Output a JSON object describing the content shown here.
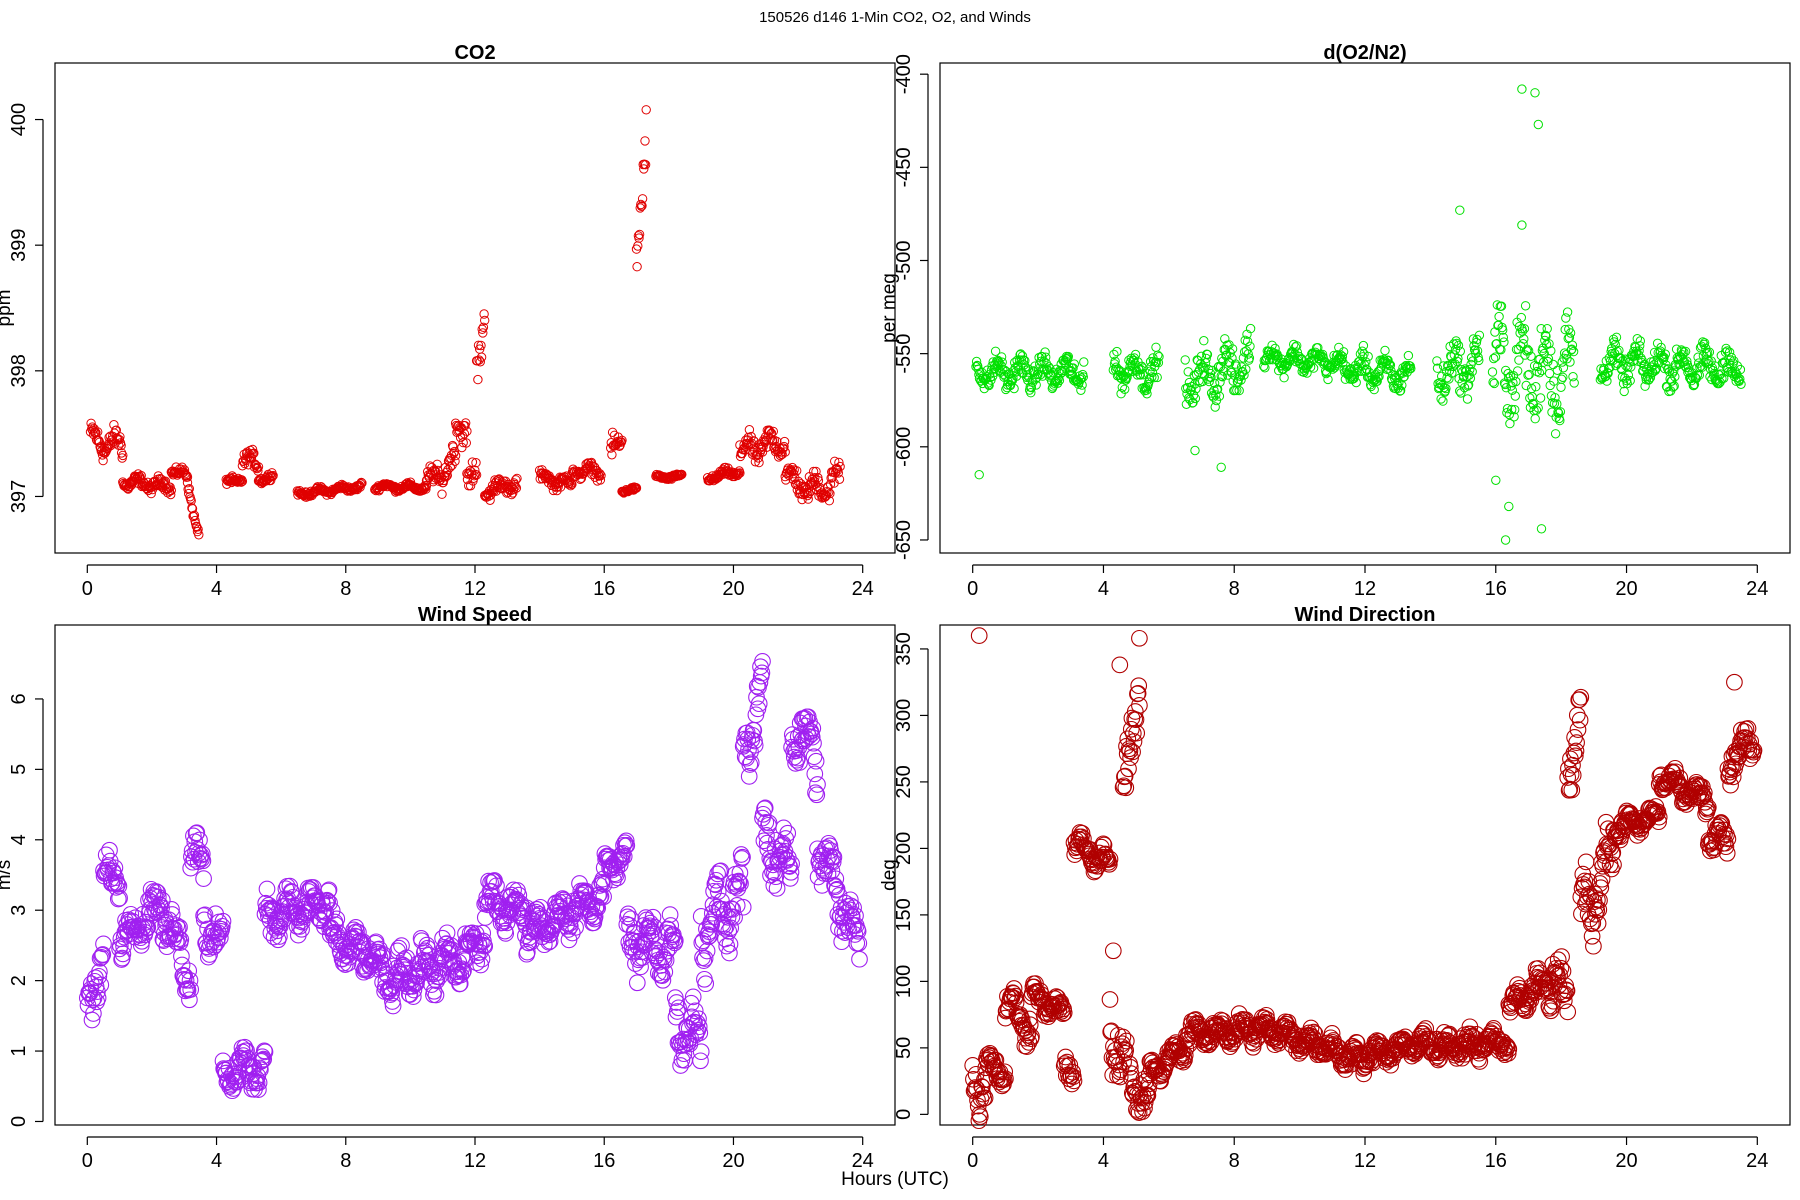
{
  "figure_title": "150526   d146   1-Min CO2, O2, and Winds",
  "xlabel": "Hours (UTC)",
  "chart_data": [
    {
      "type": "scatter",
      "title": "CO2",
      "ylabel": "ppm",
      "xlabel": "",
      "color": "#e00000",
      "xlim": [
        -1,
        25
      ],
      "ylim": [
        396.55,
        400.45
      ],
      "xticks": [
        0,
        4,
        8,
        12,
        16,
        20,
        24
      ],
      "yticks": [
        397,
        398,
        399,
        400
      ],
      "segments": [
        {
          "x": [
            0.1,
            1.1
          ],
          "y": [
            397.45,
            397.4
          ],
          "jitter": 0.12
        },
        {
          "x": [
            1.1,
            2.6
          ],
          "y": [
            397.12,
            397.08
          ],
          "jitter": 0.06
        },
        {
          "x": [
            2.6,
            3.1
          ],
          "y": [
            397.22,
            397.15
          ],
          "jitter": 0.05
        },
        {
          "x": [
            3.1,
            3.45
          ],
          "y": [
            397.1,
            396.7
          ],
          "jitter": 0.05
        },
        {
          "x": [
            4.3,
            4.8
          ],
          "y": [
            397.1,
            397.15
          ],
          "jitter": 0.04
        },
        {
          "x": [
            4.8,
            5.3
          ],
          "y": [
            397.3,
            397.25
          ],
          "jitter": 0.08
        },
        {
          "x": [
            5.3,
            5.75
          ],
          "y": [
            397.15,
            397.15
          ],
          "jitter": 0.04
        },
        {
          "x": [
            6.5,
            8.5
          ],
          "y": [
            397.02,
            397.08
          ],
          "jitter": 0.03
        },
        {
          "x": [
            8.9,
            10.5
          ],
          "y": [
            397.08,
            397.07
          ],
          "jitter": 0.03
        },
        {
          "x": [
            10.5,
            11.4
          ],
          "y": [
            397.08,
            397.3
          ],
          "jitter": 0.12
        },
        {
          "x": [
            11.4,
            11.75
          ],
          "y": [
            397.5,
            397.6
          ],
          "jitter": 0.15
        },
        {
          "x": [
            11.75,
            12.05
          ],
          "y": [
            397.2,
            397.1
          ],
          "jitter": 0.15
        },
        {
          "x": [
            12.05,
            12.3
          ],
          "y": [
            397.9,
            398.4
          ],
          "jitter": 0.3
        },
        {
          "x": [
            12.3,
            13.3
          ],
          "y": [
            397.05,
            397.1
          ],
          "jitter": 0.08
        },
        {
          "x": [
            14.0,
            15.0
          ],
          "y": [
            397.15,
            397.1
          ],
          "jitter": 0.06
        },
        {
          "x": [
            15.0,
            15.9
          ],
          "y": [
            397.2,
            397.2
          ],
          "jitter": 0.06
        },
        {
          "x": [
            16.2,
            16.55
          ],
          "y": [
            397.3,
            397.5
          ],
          "jitter": 0.12
        },
        {
          "x": [
            16.55,
            17.0
          ],
          "y": [
            397.05,
            397.05
          ],
          "jitter": 0.02
        },
        {
          "x": [
            17.0,
            17.3
          ],
          "y": [
            398.7,
            400.1
          ],
          "jitter": 0.3
        },
        {
          "x": [
            17.6,
            18.4
          ],
          "y": [
            397.15,
            397.16
          ],
          "jitter": 0.02
        },
        {
          "x": [
            19.2,
            20.2
          ],
          "y": [
            397.15,
            397.2
          ],
          "jitter": 0.04
        },
        {
          "x": [
            20.2,
            21.6
          ],
          "y": [
            397.35,
            397.45
          ],
          "jitter": 0.12
        },
        {
          "x": [
            21.6,
            22.5
          ],
          "y": [
            397.15,
            397.05
          ],
          "jitter": 0.12
        },
        {
          "x": [
            22.5,
            23.3
          ],
          "y": [
            397.05,
            397.15
          ],
          "jitter": 0.14
        }
      ]
    },
    {
      "type": "scatter",
      "title": "d(O2/N2)",
      "ylabel": "per meg",
      "xlabel": "",
      "color": "#00e000",
      "xlim": [
        -1,
        25
      ],
      "ylim": [
        -657,
        -394
      ],
      "xticks": [
        0,
        4,
        8,
        12,
        16,
        20,
        24
      ],
      "yticks": [
        -650,
        -600,
        -550,
        -500,
        -450,
        -400
      ],
      "segments": [
        {
          "x": [
            0.1,
            3.4
          ],
          "y": [
            -560,
            -560
          ],
          "jitter": 9
        },
        {
          "x": [
            4.3,
            5.7
          ],
          "y": [
            -558,
            -560
          ],
          "jitter": 10
        },
        {
          "x": [
            6.5,
            8.5
          ],
          "y": [
            -565,
            -555
          ],
          "jitter": 15
        },
        {
          "x": [
            8.9,
            11.2
          ],
          "y": [
            -552,
            -555
          ],
          "jitter": 7
        },
        {
          "x": [
            11.2,
            13.4
          ],
          "y": [
            -557,
            -562
          ],
          "jitter": 9
        },
        {
          "x": [
            14.2,
            15.5
          ],
          "y": [
            -560,
            -555
          ],
          "jitter": 15
        },
        {
          "x": [
            15.9,
            18.4
          ],
          "y": [
            -555,
            -560
          ],
          "jitter": 28
        },
        {
          "x": [
            19.2,
            23.5
          ],
          "y": [
            -555,
            -558
          ],
          "jitter": 11
        }
      ],
      "outliers": [
        {
          "x": 16.8,
          "y": -408
        },
        {
          "x": 17.2,
          "y": -410
        },
        {
          "x": 17.3,
          "y": -427
        },
        {
          "x": 14.9,
          "y": -473
        },
        {
          "x": 16.8,
          "y": -481
        },
        {
          "x": 16.4,
          "y": -632
        },
        {
          "x": 16.3,
          "y": -650
        },
        {
          "x": 17.4,
          "y": -644
        },
        {
          "x": 6.8,
          "y": -602
        },
        {
          "x": 7.6,
          "y": -611
        },
        {
          "x": 0.2,
          "y": -615
        },
        {
          "x": 16.0,
          "y": -618
        }
      ]
    },
    {
      "type": "scatter",
      "title": "Wind Speed",
      "ylabel": "m/s",
      "xlabel": "",
      "color": "#a020f0",
      "xlim": [
        -1,
        25
      ],
      "ylim": [
        -0.05,
        7.05
      ],
      "xticks": [
        0,
        4,
        8,
        12,
        16,
        20,
        24
      ],
      "yticks": [
        0,
        1,
        2,
        3,
        4,
        5,
        6
      ],
      "segments": [
        {
          "x": [
            0.0,
            0.5
          ],
          "y": [
            1.5,
            2.5
          ],
          "jitter": 0.5
        },
        {
          "x": [
            0.5,
            1.0
          ],
          "y": [
            3.4,
            3.5
          ],
          "jitter": 0.3
        },
        {
          "x": [
            1.0,
            2.3
          ],
          "y": [
            2.6,
            3.1
          ],
          "jitter": 0.3
        },
        {
          "x": [
            2.3,
            3.2
          ],
          "y": [
            3.0,
            2.1
          ],
          "jitter": 0.4
        },
        {
          "x": [
            3.2,
            3.6
          ],
          "y": [
            3.9,
            3.6
          ],
          "jitter": 0.35
        },
        {
          "x": [
            3.6,
            4.2
          ],
          "y": [
            2.9,
            2.4
          ],
          "jitter": 0.4
        },
        {
          "x": [
            4.2,
            5.5
          ],
          "y": [
            0.7,
            0.8
          ],
          "jitter": 0.3
        },
        {
          "x": [
            5.5,
            7.5
          ],
          "y": [
            2.9,
            3.1
          ],
          "jitter": 0.35
        },
        {
          "x": [
            7.5,
            9.0
          ],
          "y": [
            2.6,
            2.3
          ],
          "jitter": 0.3
        },
        {
          "x": [
            9.0,
            11.5
          ],
          "y": [
            2.0,
            2.3
          ],
          "jitter": 0.35
        },
        {
          "x": [
            11.5,
            12.3
          ],
          "y": [
            2.2,
            2.7
          ],
          "jitter": 0.35
        },
        {
          "x": [
            12.3,
            13.6
          ],
          "y": [
            3.1,
            3.0
          ],
          "jitter": 0.3
        },
        {
          "x": [
            13.6,
            16.0
          ],
          "y": [
            2.7,
            3.2
          ],
          "jitter": 0.3
        },
        {
          "x": [
            16.0,
            16.7
          ],
          "y": [
            3.6,
            3.8
          ],
          "jitter": 0.2
        },
        {
          "x": [
            16.7,
            18.2
          ],
          "y": [
            2.6,
            2.4
          ],
          "jitter": 0.45
        },
        {
          "x": [
            18.2,
            19.0
          ],
          "y": [
            1.4,
            1.2
          ],
          "jitter": 0.45
        },
        {
          "x": [
            19.0,
            20.3
          ],
          "y": [
            2.7,
            3.2
          ],
          "jitter": 0.6
        },
        {
          "x": [
            20.3,
            20.9
          ],
          "y": [
            5.2,
            6.2
          ],
          "jitter": 0.5
        },
        {
          "x": [
            20.9,
            21.8
          ],
          "y": [
            4.0,
            3.6
          ],
          "jitter": 0.5
        },
        {
          "x": [
            21.8,
            22.6
          ],
          "y": [
            5.6,
            5.2
          ],
          "jitter": 0.5
        },
        {
          "x": [
            22.6,
            23.9
          ],
          "y": [
            3.9,
            2.5
          ],
          "jitter": 0.5
        }
      ]
    },
    {
      "type": "scatter",
      "title": "Wind Direction",
      "ylabel": "deg",
      "xlabel": "",
      "color": "#b00000",
      "xlim": [
        -1,
        25
      ],
      "ylim": [
        -8,
        368
      ],
      "xticks": [
        0,
        4,
        8,
        12,
        16,
        20,
        24
      ],
      "yticks": [
        0,
        50,
        100,
        150,
        200,
        250,
        300,
        350
      ],
      "segments": [
        {
          "x": [
            0.0,
            0.4
          ],
          "y": [
            30,
            20
          ],
          "jitter": 25
        },
        {
          "x": [
            0.4,
            1.0
          ],
          "y": [
            40,
            30
          ],
          "jitter": 10
        },
        {
          "x": [
            1.0,
            1.8
          ],
          "y": [
            85,
            65
          ],
          "jitter": 15
        },
        {
          "x": [
            1.8,
            2.8
          ],
          "y": [
            90,
            75
          ],
          "jitter": 10
        },
        {
          "x": [
            2.8,
            3.1
          ],
          "y": [
            40,
            30
          ],
          "jitter": 10
        },
        {
          "x": [
            3.1,
            4.2
          ],
          "y": [
            205,
            185
          ],
          "jitter": 12
        },
        {
          "x": [
            4.2,
            4.7
          ],
          "y": [
            70,
            40
          ],
          "jitter": 30
        },
        {
          "x": [
            4.6,
            5.1
          ],
          "y": [
            230,
            330
          ],
          "jitter": 30
        },
        {
          "x": [
            4.8,
            5.4
          ],
          "y": [
            25,
            10
          ],
          "jitter": 15
        },
        {
          "x": [
            5.4,
            6.5
          ],
          "y": [
            30,
            50
          ],
          "jitter": 10
        },
        {
          "x": [
            6.5,
            9.0
          ],
          "y": [
            60,
            65
          ],
          "jitter": 10
        },
        {
          "x": [
            9.0,
            12.0
          ],
          "y": [
            65,
            40
          ],
          "jitter": 10
        },
        {
          "x": [
            12.0,
            14.2
          ],
          "y": [
            45,
            55
          ],
          "jitter": 10
        },
        {
          "x": [
            14.2,
            16.4
          ],
          "y": [
            50,
            55
          ],
          "jitter": 10
        },
        {
          "x": [
            16.4,
            17.6
          ],
          "y": [
            80,
            100
          ],
          "jitter": 12
        },
        {
          "x": [
            17.6,
            18.2
          ],
          "y": [
            110,
            80
          ],
          "jitter": 25
        },
        {
          "x": [
            18.2,
            18.6
          ],
          "y": [
            260,
            300
          ],
          "jitter": 30
        },
        {
          "x": [
            18.6,
            19.6
          ],
          "y": [
            150,
            190
          ],
          "jitter": 30
        },
        {
          "x": [
            19.6,
            21.0
          ],
          "y": [
            215,
            225
          ],
          "jitter": 8
        },
        {
          "x": [
            21.0,
            22.5
          ],
          "y": [
            255,
            235
          ],
          "jitter": 10
        },
        {
          "x": [
            22.5,
            23.1
          ],
          "y": [
            210,
            205
          ],
          "jitter": 12
        },
        {
          "x": [
            23.1,
            23.9
          ],
          "y": [
            265,
            280
          ],
          "jitter": 15
        }
      ],
      "outliers": [
        {
          "x": 0.2,
          "y": 360
        },
        {
          "x": 5.1,
          "y": 358
        },
        {
          "x": 4.5,
          "y": 338
        },
        {
          "x": 23.3,
          "y": 325
        },
        {
          "x": 4.3,
          "y": 123
        }
      ]
    }
  ]
}
